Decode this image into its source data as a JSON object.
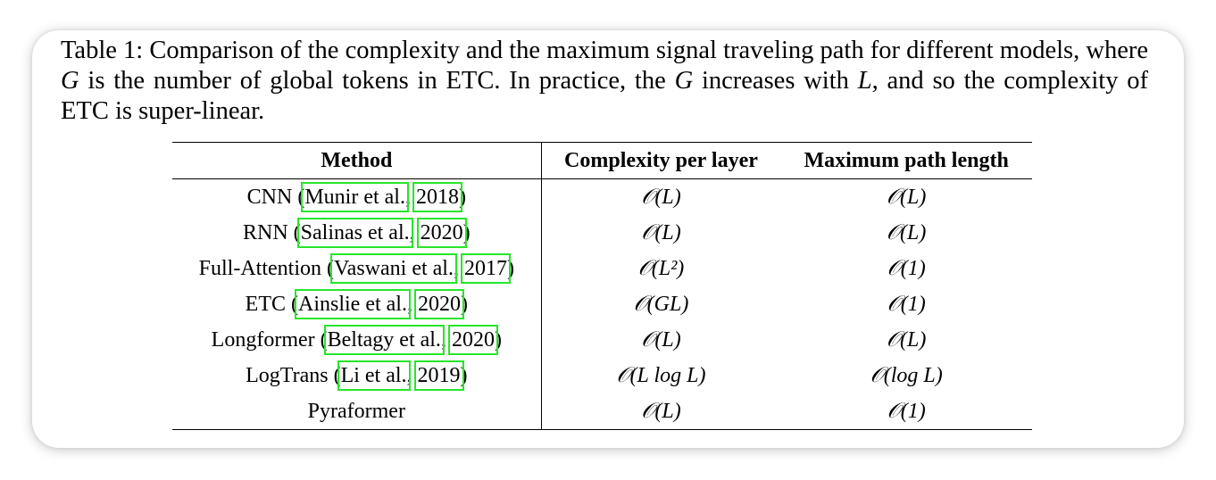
{
  "caption": {
    "prefix": "Table 1: Comparison of the complexity and the maximum signal traveling path for different models, where ",
    "var_g1": "G",
    "mid1": " is the number of global tokens in ETC. In practice, the ",
    "var_g2": "G",
    "mid2": " increases with ",
    "var_l": "L",
    "suffix": ", and so the complexity of ETC is super-linear."
  },
  "table": {
    "headers": {
      "method": "Method",
      "complexity": "Complexity per layer",
      "path": "Maximum path length"
    },
    "rows": [
      {
        "method": "CNN",
        "author": "Munir et al.",
        "year": "2018",
        "complexity": "𝒪(L)",
        "path": "𝒪(L)"
      },
      {
        "method": "RNN",
        "author": "Salinas et al.",
        "year": "2020",
        "complexity": "𝒪(L)",
        "path": "𝒪(L)"
      },
      {
        "method": "Full-Attention",
        "author": "Vaswani et al.",
        "year": "2017",
        "complexity": "𝒪(L²)",
        "path": "𝒪(1)"
      },
      {
        "method": "ETC",
        "author": "Ainslie et al.",
        "year": "2020",
        "complexity": "𝒪(GL)",
        "path": "𝒪(1)"
      },
      {
        "method": "Longformer",
        "author": "Beltagy et al.",
        "year": "2020",
        "complexity": "𝒪(L)",
        "path": "𝒪(L)"
      },
      {
        "method": "LogTrans",
        "author": "Li et al.",
        "year": "2019",
        "complexity": "𝒪(L log L)",
        "path": "𝒪(log L)"
      },
      {
        "method": "Pyraformer",
        "author": "",
        "year": "",
        "complexity": "𝒪(L)",
        "path": "𝒪(1)"
      }
    ]
  },
  "colors": {
    "citation_box": "#27e52a",
    "text": "#000000",
    "background": "#ffffff"
  }
}
